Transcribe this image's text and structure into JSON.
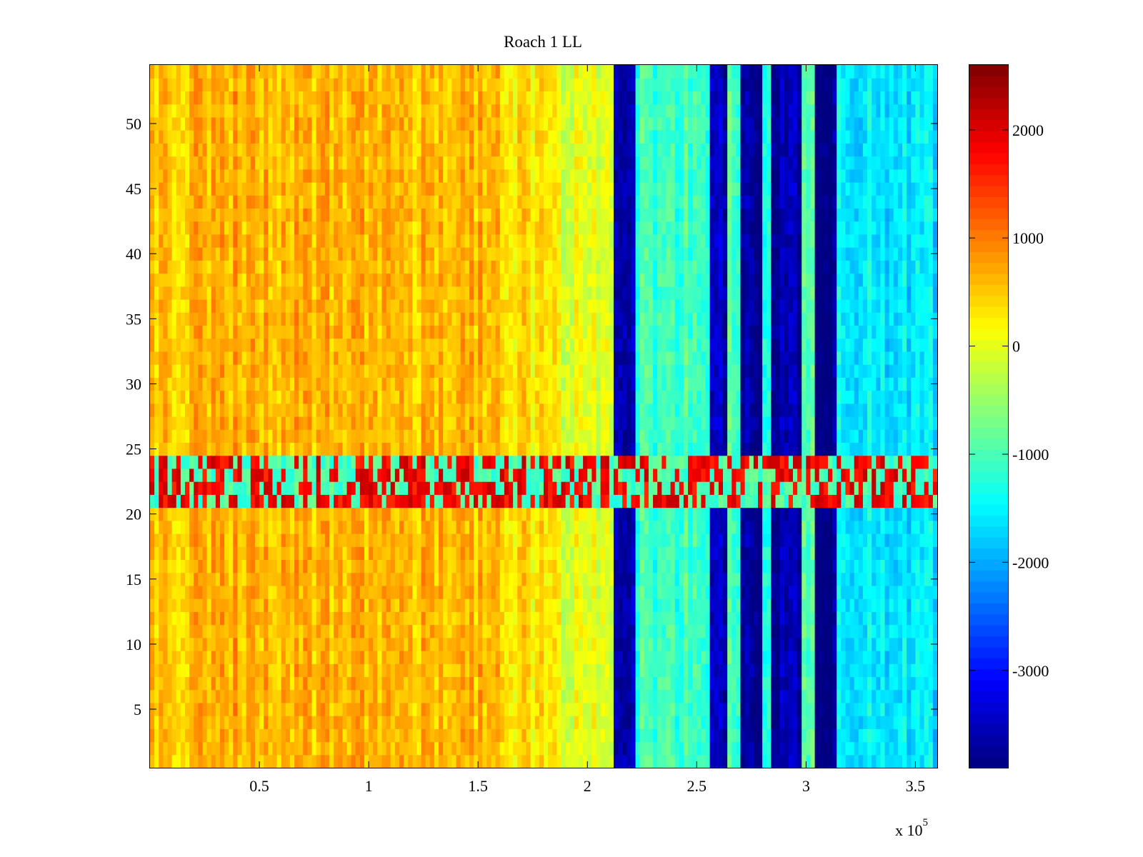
{
  "chart_data": {
    "type": "heatmap",
    "title": "Roach 1 LL",
    "xlabel": "",
    "ylabel": "",
    "x_multiplier_label": "x 10",
    "x_multiplier_exponent": "5",
    "xlim": [
      0,
      360000
    ],
    "ylim": [
      0.5,
      54.5
    ],
    "xticks": [
      0.5,
      1,
      1.5,
      2,
      2.5,
      3,
      3.5
    ],
    "xtick_labels": [
      "0.5",
      "1",
      "1.5",
      "2",
      "2.5",
      "3",
      "3.5"
    ],
    "yticks": [
      5,
      10,
      15,
      20,
      25,
      30,
      35,
      40,
      45,
      50
    ],
    "ytick_labels": [
      "5",
      "10",
      "15",
      "20",
      "25",
      "30",
      "35",
      "40",
      "45",
      "50"
    ],
    "rows": 54,
    "colorbar": {
      "colormap": "jet",
      "clim": [
        -3900,
        2600
      ],
      "ticks": [
        2000,
        1000,
        0,
        -1000,
        -2000,
        -3000
      ],
      "tick_labels": [
        "2000",
        "1000",
        "0",
        "-1000",
        "-2000",
        "-3000"
      ]
    },
    "column_segments": [
      {
        "x_start": 0,
        "x_end": 20000,
        "value": 600
      },
      {
        "x_start": 20000,
        "x_end": 42000,
        "value": 700
      },
      {
        "x_start": 42000,
        "x_end": 64000,
        "value": 650
      },
      {
        "x_start": 64000,
        "x_end": 90000,
        "value": 600
      },
      {
        "x_start": 90000,
        "x_end": 115000,
        "value": 620
      },
      {
        "x_start": 115000,
        "x_end": 140000,
        "value": 580
      },
      {
        "x_start": 140000,
        "x_end": 163000,
        "value": 620
      },
      {
        "x_start": 163000,
        "x_end": 187000,
        "value": 350
      },
      {
        "x_start": 187000,
        "x_end": 212000,
        "value": 0
      },
      {
        "x_start": 212000,
        "x_end": 223000,
        "value": -3600
      },
      {
        "x_start": 223000,
        "x_end": 257000,
        "value": -1100
      },
      {
        "x_start": 257000,
        "x_end": 264000,
        "value": -3500
      },
      {
        "x_start": 264000,
        "x_end": 271000,
        "value": -900
      },
      {
        "x_start": 271000,
        "x_end": 280000,
        "value": -3800
      },
      {
        "x_start": 280000,
        "x_end": 285000,
        "value": -1200
      },
      {
        "x_start": 285000,
        "x_end": 299000,
        "value": -3600
      },
      {
        "x_start": 299000,
        "x_end": 305000,
        "value": -1000
      },
      {
        "x_start": 305000,
        "x_end": 315000,
        "value": -3900
      },
      {
        "x_start": 315000,
        "x_end": 360000,
        "value": -1600
      }
    ],
    "row_band": {
      "y_start": 21,
      "y_end": 24,
      "note_value": 1500
    }
  }
}
